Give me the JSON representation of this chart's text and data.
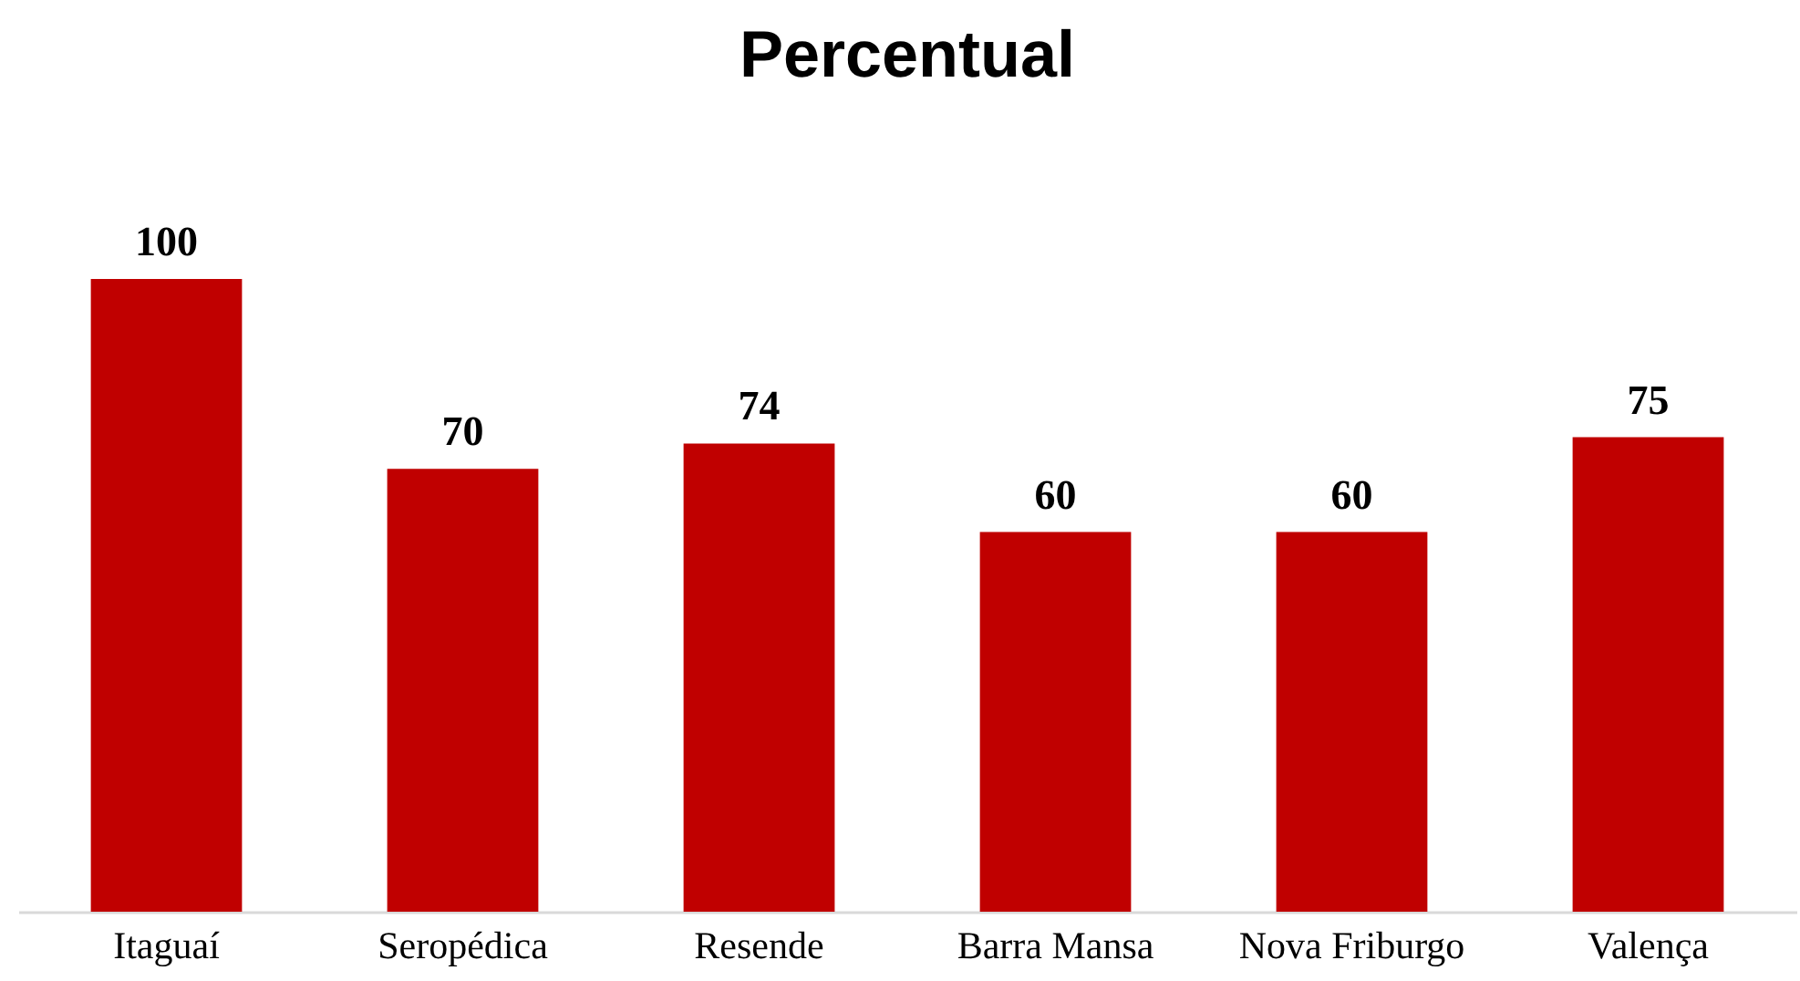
{
  "chart_data": {
    "type": "bar",
    "title": "Percentual",
    "categories": [
      "Itaguaí",
      "Seropédica",
      "Resende",
      "Barra Mansa",
      "Nova Friburgo",
      "Valença"
    ],
    "values": [
      100,
      70,
      74,
      60,
      60,
      75
    ],
    "color": "#c00000",
    "data_labels": true
  }
}
